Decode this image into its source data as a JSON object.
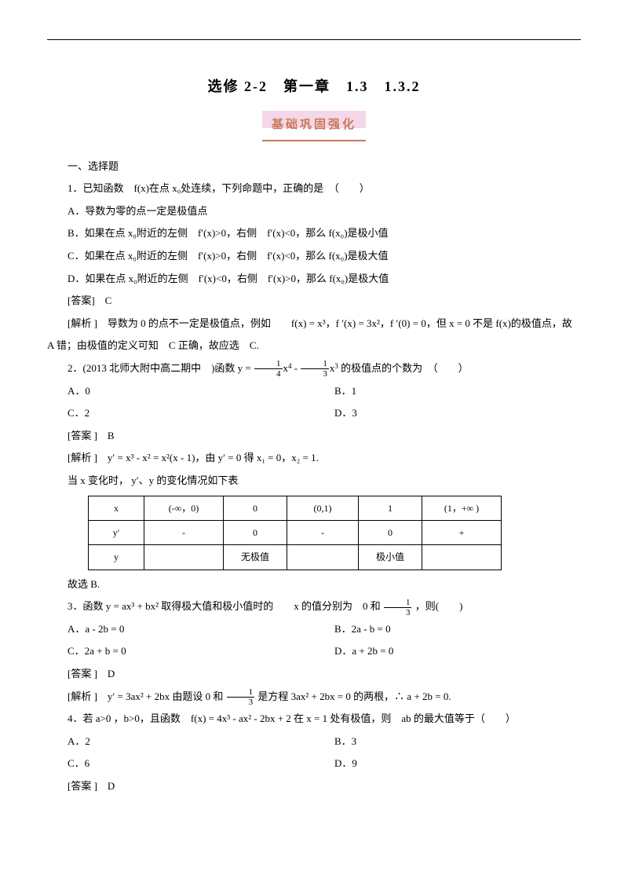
{
  "title": "选修 2-2　第一章　1.3　1.3.2",
  "banner": "基础巩固强化",
  "sec1": "一、选择题",
  "q1": {
    "stem": "1．已知函数　f(x)在点 x₀处连续，下列命题中，正确的是　（　　）",
    "a": "A．导数为零的点一定是极值点",
    "b": "B．如果在点 x₀附近的左侧　f′(x)>0，右侧　f′(x)<0，那么 f(x₀)是极小值",
    "c": "C．如果在点 x₀附近的左侧　f′(x)>0，右侧　f′(x)<0，那么 f(x₀)是极大值",
    "d": "D．如果在点 x₀附近的左侧　f′(x)<0，右侧　f′(x)>0，那么 f(x₀)是极大值",
    "ans": "[答案]　C",
    "exp": "[解析 ]　导数为 0 的点不一定是极值点，例如　　f(x) = x³，f ′(x) = 3x²，f ′(0) = 0，但 x = 0 不是 f(x)的极值点，故　A 错；由极值的定义可知　C 正确，故应选　C."
  },
  "q2": {
    "stem_a": "2．(2013 北师大附中高二期中　)函数 y = ",
    "stem_b": "的极值点的个数为　（　　）",
    "a": "A．0",
    "b": "B．1",
    "c": "C．2",
    "d": "D．3",
    "ans": "[答案 ]　B",
    "exp1": "[解析 ]　y′ = x³ - x² = x²(x - 1)，由 y′ = 0 得 x₁ = 0，x₂ = 1.",
    "exp2": "当 x 变化时， y′、y 的变化情况如下表",
    "table": {
      "widths": [
        70,
        100,
        80,
        90,
        80,
        100
      ],
      "r1": [
        "x",
        "(-∞，0)",
        "0",
        "(0,1)",
        "1",
        "(1，+∞ )"
      ],
      "r2": [
        "y′",
        "-",
        "0",
        "-",
        "0",
        "+"
      ],
      "r3": [
        "y",
        "",
        "无极值",
        "",
        "极小值",
        ""
      ]
    },
    "exp3": "故选 B."
  },
  "q3": {
    "stem_a": "3．函数 y = ax³ + bx² 取得极大值和极小值时的　　x 的值分别为　0 和",
    "stem_b": "，则(　　)",
    "a": "A．a - 2b = 0",
    "b": "B．2a - b = 0",
    "c": "C．2a + b = 0",
    "d": "D．a + 2b = 0",
    "ans": "[答案 ]　D",
    "exp_a": "[解析 ]　y′ = 3ax² + 2bx 由题设 0 和",
    "exp_b": "是方程 3ax² + 2bx = 0 的两根，∴ a + 2b = 0."
  },
  "q4": {
    "stem": "4．若 a>0 ，b>0，且函数　f(x) = 4x³ - ax² - 2bx + 2 在 x = 1 处有极值，则　ab 的最大值等于（　　）",
    "a": "A．2",
    "b": "B．3",
    "c": "C．6",
    "d": "D．9",
    "ans": "[答案 ]　D"
  }
}
